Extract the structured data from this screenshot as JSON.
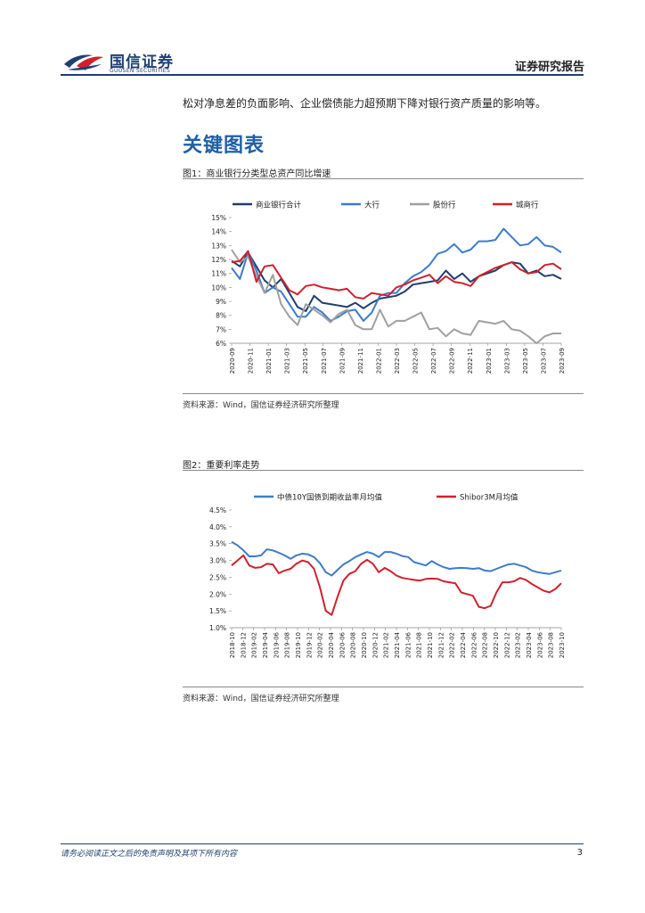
{
  "header": {
    "logo_cn": "国信证券",
    "logo_en": "GUOSEN SECURITIES",
    "report_type": "证券研究报告"
  },
  "body_text": "松对净息差的负面影响、企业偿债能力超预期下降对银行资产质量的影响等。",
  "section_title": "关键图表",
  "figure1": {
    "title": "图1：商业银行分类型总资产同比增速",
    "source": "资料来源：Wind，国信证券经济研究所整理"
  },
  "figure2": {
    "title": "图2：重要利率走势",
    "source": "资料来源：Wind，国信证券经济研究所整理"
  },
  "footer": {
    "disclaimer": "请务必阅读正文之后的免责声明及其项下所有内容",
    "page_number": "3"
  },
  "colors": {
    "brand_blue": "#1e3f73",
    "title_blue": "#1e5fa8",
    "logo_red": "#d0202e"
  },
  "chart_data": [
    {
      "type": "line",
      "ylim": [
        6,
        15
      ],
      "y_ticks": [
        "6%",
        "7%",
        "8%",
        "9%",
        "10%",
        "11%",
        "12%",
        "13%",
        "14%",
        "15%"
      ],
      "x_ticks": [
        "2020-09",
        "2020-11",
        "2021-01",
        "2021-03",
        "2021-05",
        "2021-07",
        "2021-09",
        "2021-11",
        "2022-01",
        "2022-03",
        "2022-05",
        "2022-07",
        "2022-09",
        "2022-11",
        "2023-01",
        "2023-03",
        "2023-05",
        "2023-07",
        "2023-09"
      ],
      "legend_position": "top",
      "series": [
        {
          "name": "商业银行合计",
          "color": "#1f3d6e",
          "values": [
            11.9,
            11.5,
            12.5,
            11.5,
            10.5,
            10.0,
            10.6,
            9.6,
            8.6,
            8.3,
            9.4,
            8.9,
            8.8,
            8.7,
            8.6,
            8.9,
            8.5,
            8.9,
            9.2,
            9.3,
            9.4,
            9.7,
            10.2,
            10.3,
            10.4,
            10.5,
            11.2,
            10.6,
            11.0,
            10.4,
            10.8,
            11.0,
            11.2,
            11.6,
            11.8,
            11.7,
            11.0,
            11.2,
            10.8,
            10.9,
            10.6
          ]
        },
        {
          "name": "大行",
          "color": "#3d7cc9",
          "values": [
            11.4,
            10.6,
            12.5,
            11.2,
            9.6,
            10.0,
            9.7,
            8.8,
            7.9,
            7.9,
            8.6,
            8.2,
            7.6,
            7.9,
            8.3,
            8.4,
            7.6,
            8.2,
            9.4,
            9.6,
            9.6,
            10.3,
            10.8,
            11.1,
            11.6,
            12.4,
            12.6,
            13.1,
            12.5,
            12.7,
            13.3,
            13.3,
            13.4,
            14.2,
            13.6,
            13.0,
            13.1,
            13.6,
            13.0,
            12.9,
            12.5
          ]
        },
        {
          "name": "股份行",
          "color": "#a0a0a0",
          "values": [
            12.7,
            11.8,
            12.2,
            10.8,
            9.6,
            10.9,
            8.8,
            7.9,
            7.3,
            8.8,
            8.4,
            8.0,
            7.5,
            8.1,
            8.4,
            7.3,
            7.0,
            7.0,
            8.4,
            7.2,
            7.6,
            7.6,
            7.9,
            8.2,
            7.0,
            7.1,
            6.5,
            7.0,
            6.7,
            6.6,
            7.6,
            7.5,
            7.4,
            7.6,
            7.0,
            6.9,
            6.5,
            6.0,
            6.5,
            6.7,
            6.7
          ]
        },
        {
          "name": "城商行",
          "color": "#d0202e",
          "values": [
            11.8,
            11.9,
            12.6,
            10.4,
            11.5,
            11.6,
            10.7,
            9.8,
            9.5,
            10.1,
            10.2,
            10.0,
            9.9,
            9.8,
            9.9,
            9.3,
            9.2,
            9.6,
            9.5,
            9.4,
            10.0,
            10.2,
            10.5,
            10.7,
            10.9,
            10.3,
            10.8,
            10.4,
            10.3,
            10.1,
            10.8,
            11.1,
            11.4,
            11.6,
            11.8,
            11.3,
            11.0,
            11.1,
            11.6,
            11.7,
            11.3
          ]
        }
      ]
    },
    {
      "type": "line",
      "ylim": [
        1.0,
        4.5
      ],
      "y_ticks": [
        "1.0%",
        "1.5%",
        "2.0%",
        "2.5%",
        "3.0%",
        "3.5%",
        "4.0%",
        "4.5%"
      ],
      "x_ticks": [
        "2018-10",
        "2018-12",
        "2019-02",
        "2019-04",
        "2019-06",
        "2019-08",
        "2019-10",
        "2019-12",
        "2020-02",
        "2020-04",
        "2020-06",
        "2020-08",
        "2020-10",
        "2020-12",
        "2021-02",
        "2021-04",
        "2021-06",
        "2021-08",
        "2021-10",
        "2021-12",
        "2022-02",
        "2022-04",
        "2022-06",
        "2022-08",
        "2022-10",
        "2022-12",
        "2023-02",
        "2023-04",
        "2023-06",
        "2023-08",
        "2023-10"
      ],
      "legend_position": "top",
      "series": [
        {
          "name": "中债10Y国债到期收益率月均值",
          "color": "#3d7cc9",
          "values": [
            3.55,
            3.45,
            3.3,
            3.12,
            3.12,
            3.15,
            3.33,
            3.3,
            3.23,
            3.15,
            3.05,
            3.15,
            3.2,
            3.18,
            3.1,
            2.92,
            2.65,
            2.55,
            2.72,
            2.88,
            2.98,
            3.1,
            3.18,
            3.25,
            3.2,
            3.1,
            3.25,
            3.25,
            3.2,
            3.13,
            3.1,
            2.95,
            2.9,
            2.85,
            2.98,
            2.88,
            2.8,
            2.75,
            2.77,
            2.78,
            2.77,
            2.75,
            2.77,
            2.7,
            2.68,
            2.75,
            2.82,
            2.88,
            2.9,
            2.85,
            2.8,
            2.7,
            2.65,
            2.62,
            2.6,
            2.65,
            2.7
          ]
        },
        {
          "name": "Shibor3M月均值",
          "color": "#d0202e",
          "values": [
            2.85,
            3.0,
            3.15,
            2.85,
            2.78,
            2.8,
            2.9,
            2.88,
            2.62,
            2.7,
            2.75,
            2.9,
            3.0,
            2.95,
            2.75,
            2.2,
            1.5,
            1.38,
            1.92,
            2.4,
            2.6,
            2.68,
            2.9,
            3.02,
            2.9,
            2.65,
            2.78,
            2.68,
            2.55,
            2.48,
            2.45,
            2.42,
            2.4,
            2.45,
            2.46,
            2.45,
            2.38,
            2.35,
            2.32,
            2.05,
            2.0,
            1.95,
            1.62,
            1.58,
            1.65,
            2.05,
            2.35,
            2.35,
            2.38,
            2.48,
            2.42,
            2.3,
            2.2,
            2.1,
            2.05,
            2.15,
            2.32
          ]
        }
      ]
    }
  ]
}
